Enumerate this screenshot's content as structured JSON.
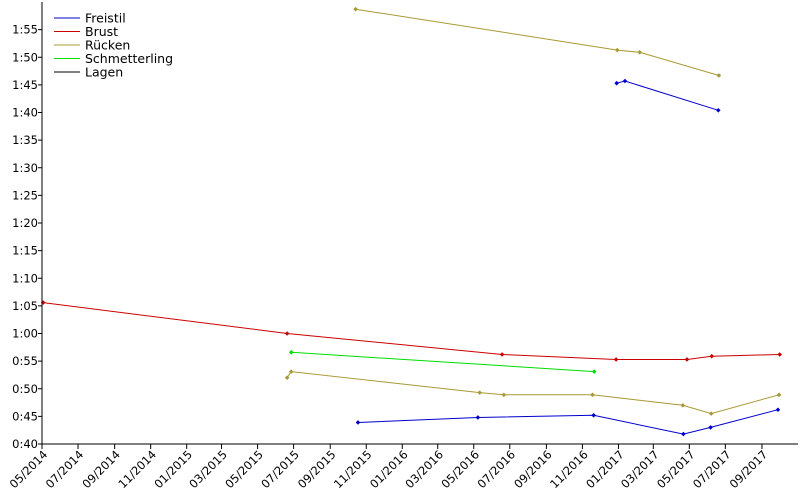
{
  "chart_data": {
    "type": "line",
    "title": "",
    "xlabel": "",
    "ylabel": "",
    "grid": false,
    "legend_position": "top-left",
    "xlim": [
      "2014-05-01",
      "2017-11-01"
    ],
    "ylim": [
      "0:40",
      "2:00"
    ],
    "x_ticks": [
      "05/2014",
      "07/2014",
      "09/2014",
      "11/2014",
      "01/2015",
      "03/2015",
      "05/2015",
      "07/2015",
      "09/2015",
      "11/2015",
      "01/2016",
      "03/2016",
      "05/2016",
      "07/2016",
      "09/2016",
      "11/2016",
      "01/2017",
      "03/2017",
      "05/2017",
      "07/2017",
      "09/2017"
    ],
    "y_ticks": [
      "0:40",
      "0:45",
      "0:50",
      "0:55",
      "1:00",
      "1:05",
      "1:10",
      "1:15",
      "1:20",
      "1:25",
      "1:30",
      "1:35",
      "1:40",
      "1:45",
      "1:50",
      "1:55"
    ],
    "series": [
      {
        "name": "Freistil",
        "color": "#0000cc",
        "lines": [
          [
            {
              "x": "2015-10-18",
              "y": "0:43.9"
            },
            {
              "x": "2016-05-08",
              "y": "0:44.8"
            },
            {
              "x": "2016-11-20",
              "y": "0:45.2"
            },
            {
              "x": "2017-04-21",
              "y": "0:41.8"
            },
            {
              "x": "2017-06-06",
              "y": "0:43.0"
            },
            {
              "x": "2017-09-28",
              "y": "0:46.2"
            }
          ],
          [
            {
              "x": "2016-12-29",
              "y": "1:45.3"
            },
            {
              "x": "2017-01-12",
              "y": "1:45.7"
            },
            {
              "x": "2017-06-19",
              "y": "1:40.4"
            }
          ]
        ]
      },
      {
        "name": "Brust",
        "color": "#cc0000",
        "lines": [
          [
            {
              "x": "2014-05-03",
              "y": "1:05.6"
            },
            {
              "x": "2015-06-20",
              "y": "1:00.0"
            },
            {
              "x": "2016-06-18",
              "y": "0:56.2"
            },
            {
              "x": "2016-12-28",
              "y": "0:55.3"
            },
            {
              "x": "2017-04-27",
              "y": "0:55.3"
            },
            {
              "x": "2017-06-08",
              "y": "0:55.9"
            },
            {
              "x": "2017-10-01",
              "y": "0:56.2"
            }
          ]
        ]
      },
      {
        "name": "Rücken",
        "color": "#aa9933",
        "lines": [
          [
            {
              "x": "2015-10-14",
              "y": "1:58.7"
            },
            {
              "x": "2016-12-30",
              "y": "1:51.3"
            },
            {
              "x": "2017-02-06",
              "y": "1:50.9"
            },
            {
              "x": "2017-06-20",
              "y": "1:46.7"
            }
          ],
          [
            {
              "x": "2015-06-20",
              "y": "0:52.0"
            },
            {
              "x": "2015-06-27",
              "y": "0:53.1"
            },
            {
              "x": "2016-05-11",
              "y": "0:49.3"
            },
            {
              "x": "2016-06-21",
              "y": "0:48.9"
            },
            {
              "x": "2016-11-18",
              "y": "0:48.9"
            },
            {
              "x": "2017-04-20",
              "y": "0:47.0"
            },
            {
              "x": "2017-06-07",
              "y": "0:45.5"
            },
            {
              "x": "2017-09-30",
              "y": "0:48.9"
            }
          ]
        ]
      },
      {
        "name": "Schmetterling",
        "color": "#00dd00",
        "lines": [
          [
            {
              "x": "2015-06-27",
              "y": "0:56.6"
            },
            {
              "x": "2016-11-21",
              "y": "0:53.1"
            }
          ]
        ]
      },
      {
        "name": "Lagen",
        "color": "#000000",
        "lines": []
      }
    ]
  }
}
